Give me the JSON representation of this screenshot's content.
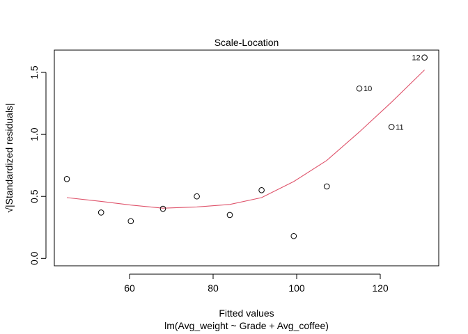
{
  "chart_data": {
    "type": "scatter",
    "title": "Scale-Location",
    "xlabel": "Fitted values",
    "subtitle": "lm(Avg_weight ~ Grade + Avg_coffee)",
    "ylabel": "√|Standardized residuals|",
    "xlim": [
      42,
      134
    ],
    "ylim": [
      -0.06,
      1.68
    ],
    "xticks": [
      60,
      80,
      100,
      120
    ],
    "yticks": [
      0.0,
      0.5,
      1.0,
      1.5
    ],
    "xtick_labels": [
      "60",
      "80",
      "100",
      "120"
    ],
    "ytick_labels": [
      "0.0",
      "0.5",
      "1.0",
      "1.5"
    ],
    "grid": false,
    "points": [
      {
        "x": 45.0,
        "y": 0.64,
        "label": ""
      },
      {
        "x": 53.2,
        "y": 0.37,
        "label": ""
      },
      {
        "x": 60.3,
        "y": 0.3,
        "label": ""
      },
      {
        "x": 68.0,
        "y": 0.4,
        "label": ""
      },
      {
        "x": 76.1,
        "y": 0.5,
        "label": ""
      },
      {
        "x": 84.0,
        "y": 0.35,
        "label": ""
      },
      {
        "x": 91.6,
        "y": 0.55,
        "label": ""
      },
      {
        "x": 99.3,
        "y": 0.18,
        "label": ""
      },
      {
        "x": 107.2,
        "y": 0.58,
        "label": ""
      },
      {
        "x": 115.0,
        "y": 1.37,
        "label": "10"
      },
      {
        "x": 122.7,
        "y": 1.06,
        "label": "11"
      },
      {
        "x": 130.6,
        "y": 1.62,
        "label": "12"
      }
    ],
    "smooth_line": {
      "color": "#DF536B",
      "x": [
        45.0,
        53.2,
        60.3,
        68.0,
        76.1,
        84.0,
        91.6,
        99.3,
        107.2,
        115.0,
        122.7,
        130.6
      ],
      "y": [
        0.49,
        0.46,
        0.43,
        0.405,
        0.415,
        0.435,
        0.49,
        0.62,
        0.79,
        1.02,
        1.26,
        1.52
      ]
    }
  }
}
